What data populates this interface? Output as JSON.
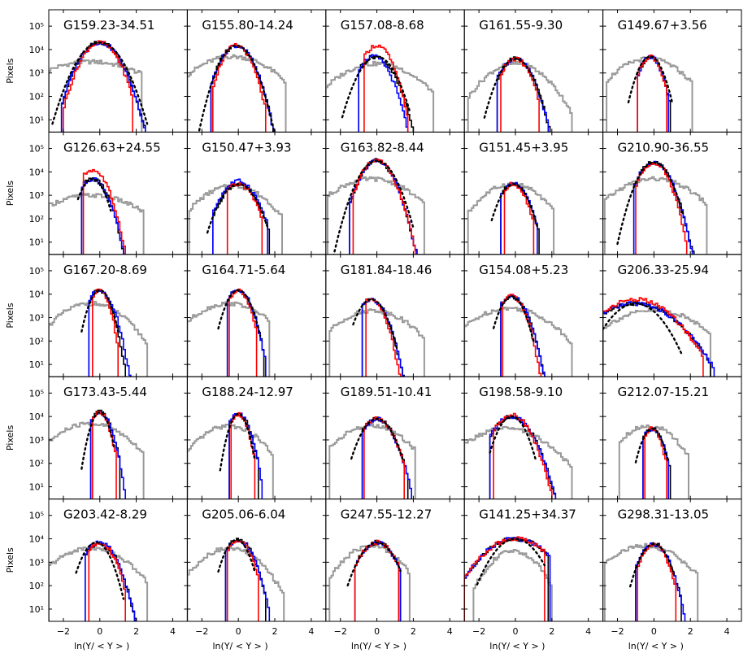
{
  "chart_data": {
    "type": "line",
    "subtype": "step-histogram-grid",
    "rows": 5,
    "cols": 5,
    "xlabel": "ln(Y/ < Y > )",
    "ylabel": "Pixels",
    "xlim": [
      -2.8,
      4.8
    ],
    "ylim": [
      3,
      500000
    ],
    "yscale": "log",
    "xticks": [
      -2,
      0,
      2,
      4
    ],
    "xtick_labels": [
      "−2",
      "0",
      "2",
      "4"
    ],
    "yticks": [
      10,
      100,
      1000,
      10000,
      100000
    ],
    "ytick_labels": [
      "10¹",
      "10²",
      "10³",
      "10⁴",
      "10⁵"
    ],
    "series_styles": [
      {
        "name": "black",
        "color": "#000000",
        "dash": "none"
      },
      {
        "name": "gray",
        "color": "#999999",
        "dash": "none"
      },
      {
        "name": "blue",
        "color": "#0000ff",
        "dash": "none"
      },
      {
        "name": "red",
        "color": "#ff0000",
        "dash": "none"
      },
      {
        "name": "lognormal",
        "color": "#000000",
        "dash": "dotted"
      }
    ],
    "panels": [
      {
        "title": "G159.23-34.51",
        "g": [
          3000,
          -0.5,
          1.8,
          -2.8,
          2.2
        ],
        "b": [
          20000,
          0.0,
          0.6,
          -2.1,
          2.5
        ],
        "r": [
          20000,
          0.0,
          0.55,
          -2.0,
          1.7
        ],
        "k": [
          20000,
          0.0,
          0.6,
          -2.1,
          2.5
        ],
        "d": [
          20000,
          0.0,
          0.65,
          -2.6,
          2.6
        ]
      },
      {
        "title": "G155.80-14.24",
        "g": [
          5000,
          -0.3,
          1.3,
          -2.8,
          2.5
        ],
        "b": [
          15000,
          -0.1,
          0.5,
          -1.5,
          2.0
        ],
        "r": [
          15000,
          -0.1,
          0.45,
          -1.4,
          1.4
        ],
        "k": [
          15000,
          -0.1,
          0.5,
          -1.5,
          2.0
        ],
        "d": [
          15000,
          -0.1,
          0.5,
          -2.2,
          2.0
        ]
      },
      {
        "title": "G157.08-8.68",
        "g": [
          2500,
          0.0,
          1.3,
          -2.8,
          3.0
        ],
        "b": [
          5000,
          -0.2,
          0.5,
          -1.0,
          2.2
        ],
        "r": [
          15000,
          0.0,
          0.45,
          -0.7,
          1.6
        ],
        "k": [
          5000,
          -0.1,
          0.55,
          -1.0,
          2.5
        ],
        "d": [
          5000,
          0.0,
          0.55,
          -1.9,
          1.8
        ]
      },
      {
        "title": "G161.55-9.30",
        "g": [
          2500,
          0.0,
          1.0,
          -2.6,
          3.0
        ],
        "b": [
          4000,
          0.0,
          0.5,
          -1.0,
          1.7
        ],
        "r": [
          4000,
          0.0,
          0.45,
          -0.8,
          1.2
        ],
        "k": [
          4000,
          0.0,
          0.5,
          -1.0,
          2.0
        ],
        "d": [
          4000,
          0.0,
          0.5,
          -1.7,
          1.6
        ]
      },
      {
        "title": "G149.67+3.56",
        "g": [
          4000,
          -0.3,
          1.1,
          -2.6,
          2.0
        ],
        "b": [
          5000,
          -0.2,
          0.35,
          -0.9,
          0.7
        ],
        "r": [
          5000,
          -0.2,
          0.35,
          -0.9,
          0.6
        ],
        "k": [
          5000,
          -0.2,
          0.35,
          -0.9,
          0.8
        ],
        "d": [
          5000,
          -0.2,
          0.4,
          -1.4,
          1.0
        ]
      },
      {
        "title": "G126.63+24.55",
        "g": [
          1000,
          -0.5,
          1.6,
          -2.8,
          2.3
        ],
        "b": [
          5000,
          -0.4,
          0.45,
          -1.0,
          2.0
        ],
        "r": [
          12000,
          -0.4,
          0.45,
          -0.9,
          1.6
        ],
        "k": [
          5000,
          -0.4,
          0.45,
          -1.0,
          2.0
        ],
        "d": [
          5000,
          -0.4,
          0.4,
          -1.2,
          0.6
        ]
      },
      {
        "title": "G150.47+3.93",
        "g": [
          2500,
          -0.3,
          1.1,
          -2.7,
          2.3
        ],
        "b": [
          4000,
          0.0,
          0.55,
          -1.4,
          1.5
        ],
        "r": [
          3000,
          0.0,
          0.5,
          -0.6,
          1.2
        ],
        "k": [
          3000,
          0.0,
          0.55,
          -1.4,
          1.6
        ],
        "d": [
          3000,
          0.0,
          0.55,
          -1.7,
          1.6
        ]
      },
      {
        "title": "G163.82-8.44",
        "g": [
          5000,
          -0.3,
          1.3,
          -2.7,
          2.5
        ],
        "b": [
          30000,
          0.0,
          0.5,
          -1.5,
          2.5
        ],
        "r": [
          30000,
          0.0,
          0.5,
          -1.3,
          2.0
        ],
        "k": [
          30000,
          0.0,
          0.5,
          -1.5,
          2.3
        ],
        "d": [
          30000,
          0.0,
          0.55,
          -2.5,
          2.0
        ]
      },
      {
        "title": "G151.45+3.95",
        "g": [
          3000,
          -0.2,
          1.0,
          -2.6,
          2.0
        ],
        "b": [
          3000,
          -0.1,
          0.45,
          -0.8,
          1.1
        ],
        "r": [
          3000,
          -0.1,
          0.4,
          -0.6,
          0.9
        ],
        "k": [
          3000,
          -0.1,
          0.45,
          -0.8,
          1.2
        ],
        "d": [
          3000,
          -0.1,
          0.45,
          -1.3,
          1.2
        ]
      },
      {
        "title": "G210.90-36.55",
        "g": [
          5000,
          0.0,
          1.3,
          -2.7,
          2.8
        ],
        "b": [
          25000,
          0.0,
          0.5,
          -1.1,
          2.5
        ],
        "r": [
          25000,
          0.0,
          0.45,
          -1.0,
          1.7
        ],
        "k": [
          25000,
          0.0,
          0.5,
          -1.1,
          2.2
        ],
        "d": [
          25000,
          0.0,
          0.5,
          -2.0,
          1.6
        ]
      },
      {
        "title": "G167.20-8.69",
        "g": [
          4000,
          -0.5,
          1.1,
          -2.8,
          2.5
        ],
        "b": [
          15000,
          0.0,
          0.4,
          -0.6,
          1.7
        ],
        "r": [
          15000,
          0.0,
          0.3,
          -0.4,
          0.9
        ],
        "k": [
          15000,
          0.0,
          0.35,
          -0.6,
          1.5
        ],
        "d": [
          15000,
          0.0,
          0.35,
          -1.0,
          1.0
        ]
      },
      {
        "title": "G164.71-5.64",
        "g": [
          4000,
          -0.5,
          1.2,
          -2.8,
          1.6
        ],
        "b": [
          15000,
          0.0,
          0.4,
          -0.6,
          1.4
        ],
        "r": [
          15000,
          0.0,
          0.35,
          -0.5,
          0.9
        ],
        "k": [
          15000,
          0.0,
          0.4,
          -0.6,
          1.3
        ],
        "d": [
          15000,
          0.0,
          0.4,
          -1.1,
          1.2
        ]
      },
      {
        "title": "G181.84-18.46",
        "g": [
          2000,
          -0.2,
          1.2,
          -2.6,
          2.5
        ],
        "b": [
          6000,
          -0.3,
          0.45,
          -0.8,
          1.8
        ],
        "r": [
          6000,
          -0.3,
          0.4,
          -0.6,
          1.4
        ],
        "k": [
          6000,
          -0.3,
          0.45,
          -0.8,
          1.7
        ],
        "d": [
          6000,
          -0.3,
          0.45,
          -1.3,
          1.1
        ]
      },
      {
        "title": "G154.08+5.23",
        "g": [
          2500,
          -0.3,
          1.3,
          -2.8,
          3.0
        ],
        "b": [
          8000,
          -0.2,
          0.45,
          -0.8,
          2.5
        ],
        "r": [
          8000,
          -0.2,
          0.4,
          -0.7,
          1.8
        ],
        "k": [
          8000,
          -0.2,
          0.45,
          -0.8,
          3.0
        ],
        "d": [
          8000,
          -0.2,
          0.4,
          -1.2,
          1.0
        ]
      },
      {
        "title": "G206.33-25.94",
        "g": [
          2000,
          0.0,
          1.5,
          -2.8,
          3.0
        ],
        "b": [
          4000,
          -1.0,
          1.2,
          -2.8,
          3.2
        ],
        "r": [
          6000,
          -1.0,
          1.1,
          -2.8,
          2.6
        ],
        "k": [
          4000,
          -1.0,
          1.2,
          -2.8,
          3.0
        ],
        "d": [
          4000,
          -1.0,
          0.8,
          -2.8,
          1.5
        ]
      },
      {
        "title": "G173.43-5.44",
        "g": [
          5000,
          -0.5,
          1.2,
          -2.8,
          2.3
        ],
        "b": [
          15000,
          0.0,
          0.35,
          -0.5,
          1.5
        ],
        "r": [
          15000,
          0.0,
          0.3,
          -0.4,
          0.8
        ],
        "k": [
          15000,
          0.0,
          0.35,
          -0.5,
          1.0
        ],
        "d": [
          15000,
          0.0,
          0.3,
          -1.0,
          0.8
        ]
      },
      {
        "title": "G188.24-12.97",
        "g": [
          4000,
          -0.5,
          1.0,
          -2.8,
          1.8
        ],
        "b": [
          13000,
          0.0,
          0.35,
          -0.5,
          1.2
        ],
        "r": [
          13000,
          0.0,
          0.3,
          -0.4,
          0.8
        ],
        "k": [
          13000,
          0.0,
          0.35,
          -0.5,
          1.0
        ],
        "d": [
          13000,
          0.0,
          0.3,
          -1.0,
          0.9
        ]
      },
      {
        "title": "G189.51-10.41",
        "g": [
          4000,
          -0.3,
          1.1,
          -2.6,
          2.0
        ],
        "b": [
          8000,
          0.0,
          0.5,
          -0.8,
          1.8
        ],
        "r": [
          8000,
          0.0,
          0.5,
          -0.7,
          1.4
        ],
        "k": [
          8000,
          0.0,
          0.5,
          -0.8,
          1.6
        ],
        "d": [
          8000,
          0.0,
          0.5,
          -1.4,
          1.4
        ]
      },
      {
        "title": "G198.58-9.10",
        "g": [
          3000,
          -0.5,
          1.3,
          -2.8,
          3.0
        ],
        "b": [
          10000,
          -0.2,
          0.6,
          -1.4,
          3.0
        ],
        "r": [
          12000,
          -0.2,
          0.55,
          -1.2,
          2.3
        ],
        "k": [
          10000,
          -0.2,
          0.6,
          -1.4,
          2.5
        ],
        "d": [
          10000,
          -0.2,
          0.45,
          -1.4,
          1.1
        ]
      },
      {
        "title": "G212.07-15.21",
        "g": [
          4000,
          -0.3,
          0.9,
          -1.9,
          1.8
        ],
        "b": [
          3000,
          -0.1,
          0.35,
          -0.6,
          0.7
        ],
        "r": [
          3000,
          -0.1,
          0.3,
          -0.5,
          0.6
        ],
        "k": [
          3000,
          -0.1,
          0.35,
          -0.6,
          0.8
        ],
        "d": [
          3000,
          -0.1,
          0.35,
          -1.0,
          0.8
        ]
      },
      {
        "title": "G203.42-8.29",
        "g": [
          4000,
          -0.5,
          1.2,
          -2.8,
          2.5
        ],
        "b": [
          7000,
          0.0,
          0.5,
          -0.8,
          1.9
        ],
        "r": [
          7000,
          0.0,
          0.45,
          -0.6,
          1.3
        ],
        "k": [
          7000,
          0.0,
          0.5,
          -0.8,
          2.0
        ],
        "d": [
          7000,
          -0.2,
          0.45,
          -1.3,
          1.3
        ]
      },
      {
        "title": "G205.06-6.04",
        "g": [
          4000,
          -0.5,
          1.0,
          -2.8,
          2.4
        ],
        "b": [
          9000,
          0.0,
          0.45,
          -0.7,
          1.6
        ],
        "r": [
          9000,
          0.0,
          0.4,
          -0.6,
          1.0
        ],
        "k": [
          9000,
          0.0,
          0.45,
          -0.7,
          1.4
        ],
        "d": [
          9000,
          -0.1,
          0.4,
          -1.1,
          0.9
        ]
      },
      {
        "title": "G247.55-12.27",
        "g": [
          5000,
          -0.3,
          0.9,
          -2.6,
          1.7
        ],
        "b": [
          7000,
          0.0,
          0.55,
          -1.2,
          1.2
        ],
        "r": [
          7000,
          0.0,
          0.55,
          -1.2,
          1.1
        ],
        "k": [
          7000,
          0.0,
          0.55,
          -1.2,
          1.1
        ],
        "d": [
          7000,
          0.0,
          0.55,
          -1.6,
          1.3
        ]
      },
      {
        "title": "G141.25+34.37",
        "g": [
          3000,
          -0.1,
          0.8,
          -2.3,
          1.9
        ],
        "b": [
          10000,
          0.0,
          1.0,
          -2.8,
          1.8
        ],
        "r": [
          10000,
          0.0,
          1.0,
          -2.8,
          1.5
        ],
        "k": [
          10000,
          0.0,
          1.0,
          -2.8,
          1.7
        ],
        "d": [
          10000,
          0.0,
          0.7,
          -2.1,
          1.6
        ]
      },
      {
        "title": "G298.31-13.05",
        "g": [
          5000,
          -0.5,
          1.2,
          -2.7,
          2.3
        ],
        "b": [
          6000,
          0.0,
          0.45,
          -1.0,
          1.6
        ],
        "r": [
          6000,
          0.0,
          0.4,
          -0.9,
          1.1
        ],
        "k": [
          6000,
          0.0,
          0.45,
          -1.0,
          1.4
        ],
        "d": [
          6000,
          0.0,
          0.45,
          -1.3,
          1.1
        ]
      }
    ]
  }
}
